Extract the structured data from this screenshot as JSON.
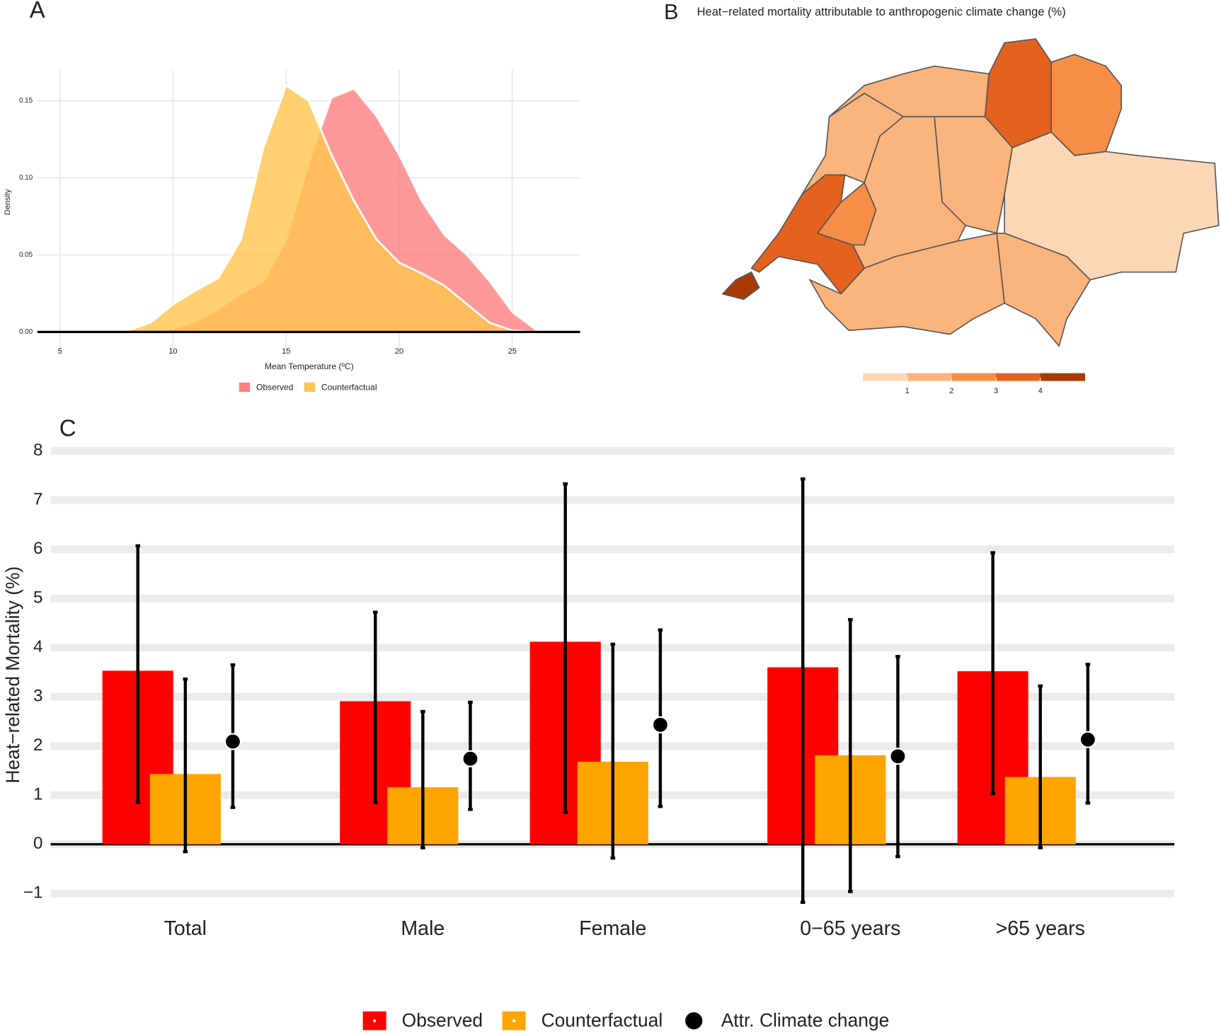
{
  "chart_data": [
    {
      "type": "area",
      "panel_label": "A",
      "x_label": "Mean Temperature (ºC)",
      "y_label": "Density",
      "x": [
        8,
        9,
        10,
        11,
        12,
        13,
        14,
        15,
        16,
        17,
        18,
        19,
        20,
        21,
        22,
        23,
        24,
        25,
        26
      ],
      "series": [
        {
          "name": "Observed",
          "color": "#ff7f7f",
          "values": [
            0,
            0,
            0.002,
            0.007,
            0.015,
            0.025,
            0.033,
            0.06,
            0.11,
            0.152,
            0.158,
            0.14,
            0.115,
            0.085,
            0.063,
            0.05,
            0.033,
            0.013,
            0.002
          ]
        },
        {
          "name": "Counterfactual",
          "color": "#ffc44d",
          "values": [
            0.001,
            0.006,
            0.018,
            0.027,
            0.035,
            0.06,
            0.12,
            0.16,
            0.15,
            0.115,
            0.085,
            0.06,
            0.045,
            0.038,
            0.03,
            0.018,
            0.006,
            0.001,
            0
          ]
        }
      ],
      "xlim": [
        4,
        28
      ],
      "xticks": [
        5,
        10,
        15,
        20,
        25
      ],
      "ylim": [
        0,
        0.17
      ],
      "yticks": [
        {
          "value": 0,
          "label": "0.00"
        },
        {
          "value": 0.05,
          "label": "0.05"
        },
        {
          "value": 0.1,
          "label": "0.10"
        },
        {
          "value": 0.15,
          "label": "0.15"
        }
      ],
      "grid": true
    },
    {
      "type": "choropleth",
      "panel_label": "B",
      "title": "Heat−related mortality attributable to anthropogenic climate change (%)",
      "values": [
        4.5,
        3.2,
        2.3,
        1.6,
        1.3,
        1.2,
        1.9,
        3.0,
        1.8,
        2.1,
        0.4,
        1.1
      ],
      "colorbar": {
        "colors": [
          "#fdd7b5",
          "#fbb47c",
          "#f68f45",
          "#e4621d",
          "#a93a08"
        ],
        "lim": [
          0,
          5
        ],
        "ticks": [
          1,
          2,
          3,
          4
        ]
      }
    },
    {
      "type": "bar",
      "panel_label": "C",
      "y_label": "Heat−related Mortality (%)",
      "categories": [
        "Total",
        "Male",
        "Female",
        "0−65 years",
        ">65 years"
      ],
      "series": [
        {
          "name": "Observed",
          "color": "#ff0000",
          "marker": "bar",
          "values": [
            3.53,
            2.91,
            4.12,
            3.6,
            3.52
          ],
          "low": [
            0.85,
            0.85,
            0.65,
            -1.18,
            1.03
          ],
          "high": [
            6.07,
            4.72,
            7.33,
            7.43,
            5.93
          ]
        },
        {
          "name": "Counterfactual",
          "color": "#ffa500",
          "marker": "bar",
          "values": [
            1.43,
            1.16,
            1.68,
            1.81,
            1.37
          ],
          "low": [
            -0.15,
            -0.07,
            -0.28,
            -0.96,
            -0.07
          ],
          "high": [
            3.36,
            2.7,
            4.07,
            4.57,
            3.22
          ]
        },
        {
          "name": "Attr. Climate change",
          "color": "#000000",
          "marker": "point",
          "values": [
            2.09,
            1.74,
            2.43,
            1.79,
            2.13
          ],
          "low": [
            0.75,
            0.71,
            0.77,
            -0.25,
            0.84
          ],
          "high": [
            3.65,
            2.89,
            4.36,
            3.82,
            3.66
          ]
        }
      ],
      "ylim": [
        -1.2,
        8.1
      ],
      "yticks": [
        {
          "value": -1,
          "label": "−1"
        },
        0,
        1,
        2,
        3,
        4,
        5,
        6,
        7,
        8
      ],
      "grid": true
    }
  ]
}
